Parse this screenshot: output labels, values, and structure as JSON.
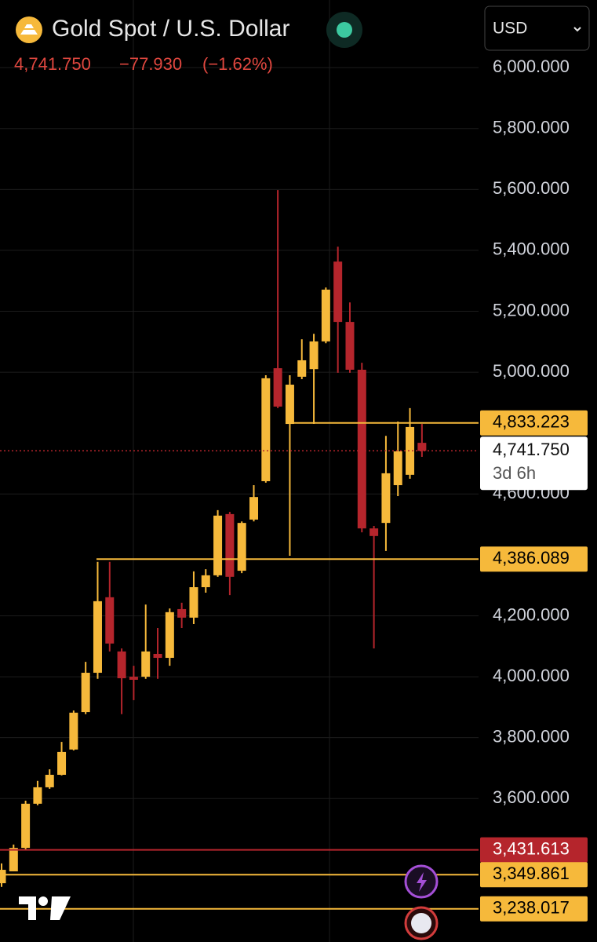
{
  "chart_data": {
    "type": "candlestick",
    "title": "Gold Spot / U.S. Dollar",
    "currency": "USD",
    "last_price": {
      "value": 4741.75,
      "label": "4,741.750",
      "countdown": "3d 6h"
    },
    "change": {
      "value": -77.93,
      "label": "−77.930"
    },
    "change_pct": {
      "value": -1.62,
      "label": "(−1.62%)"
    },
    "up_color": "#f6b93b",
    "down_color": "#b5252c",
    "open": [
      3322,
      3361,
      3438,
      3583,
      3637,
      3678,
      3761,
      3884,
      4013,
      4261,
      4083,
      4000,
      4000,
      4075,
      4062,
      4222,
      4194,
      4294,
      4333,
      4534,
      4348,
      4516,
      4642,
      5013,
      4830,
      4985,
      5010,
      5101,
      5363,
      5165,
      5008,
      4487,
      4505,
      4629,
      4663,
      4768
    ],
    "high": [
      3387,
      3449,
      3593,
      3658,
      3696,
      3786,
      3889,
      4049,
      4377,
      4377,
      4093,
      4036,
      4237,
      4160,
      4224,
      4243,
      4346,
      4353,
      4547,
      4541,
      4510,
      4629,
      4990,
      5598,
      4990,
      5108,
      5126,
      5278,
      5412,
      5229,
      5031,
      4495,
      4791,
      4838,
      4882,
      4830
    ],
    "low": [
      3310,
      3361,
      3433,
      3578,
      3632,
      3676,
      3758,
      3877,
      3993,
      4083,
      3877,
      3923,
      3993,
      3993,
      4036,
      4160,
      4173,
      4276,
      4328,
      4268,
      4340,
      4510,
      4637,
      4882,
      4397,
      4977,
      4830,
      5095,
      4998,
      4998,
      4474,
      4093,
      4413,
      4593,
      4650,
      4722
    ],
    "close": [
      3366,
      3438,
      3583,
      3637,
      3678,
      3753,
      3882,
      4013,
      4248,
      4109,
      3995,
      3990,
      4083,
      4062,
      4212,
      4194,
      4294,
      4333,
      4529,
      4328,
      4505,
      4590,
      4980,
      4887,
      4959,
      5039,
      5101,
      5271,
      5165,
      5008,
      4487,
      4462,
      4668,
      4740,
      4820,
      4741.75
    ],
    "ylim": [
      3129,
      6222
    ],
    "yticks": [
      {
        "value": 6000,
        "label": "6,000.000"
      },
      {
        "value": 5800,
        "label": "5,800.000"
      },
      {
        "value": 5600,
        "label": "5,600.000"
      },
      {
        "value": 5400,
        "label": "5,400.000"
      },
      {
        "value": 5200,
        "label": "5,200.000"
      },
      {
        "value": 5000,
        "label": "5,000.000"
      },
      {
        "value": 4600,
        "label": "4,600.000"
      },
      {
        "value": 4200,
        "label": "4,200.000"
      },
      {
        "value": 4000,
        "label": "4,000.000"
      },
      {
        "value": 3800,
        "label": "3,800.000"
      },
      {
        "value": 3600,
        "label": "3,600.000"
      }
    ],
    "grid": true,
    "price_lines": [
      {
        "value": 4833.223,
        "label": "4,833.223",
        "color": "#f6b93b"
      },
      {
        "value": 4386.089,
        "label": "4,386.089",
        "color": "#f6b93b"
      },
      {
        "value": 3431.613,
        "label": "3,431.613",
        "color": "#b5252c"
      },
      {
        "value": 3349.861,
        "label": "3,349.861",
        "color": "#f6b93b"
      },
      {
        "value": 3238.017,
        "label": "3,238.017",
        "color": "#f6b93b"
      }
    ]
  }
}
